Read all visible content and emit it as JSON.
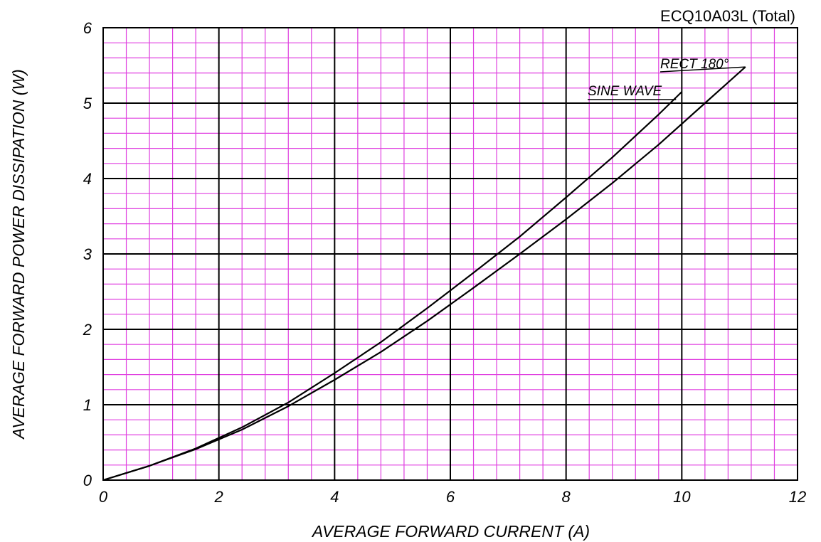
{
  "chart_data": {
    "type": "line",
    "title": "ECQ10A03L (Total)",
    "xlabel": "AVERAGE FORWARD CURRENT (A)",
    "ylabel": "AVERAGE FORWARD POWER DISSIPATION (W)",
    "xlim": [
      0,
      12
    ],
    "ylim": [
      0,
      6
    ],
    "x_ticks": [
      "0",
      "2",
      "4",
      "6",
      "8",
      "10",
      "12"
    ],
    "y_ticks": [
      "0",
      "1",
      "2",
      "3",
      "4",
      "5",
      "6"
    ],
    "grid": true,
    "minor_grid_color": "#e040e0",
    "major_grid_color": "#000000",
    "series": [
      {
        "name": "SINE WAVE",
        "x": [
          0,
          0.8,
          1.6,
          2.4,
          3.2,
          4.0,
          4.8,
          5.6,
          6.4,
          7.2,
          8.0,
          8.8,
          9.6,
          10.0
        ],
        "y": [
          0,
          0.19,
          0.42,
          0.7,
          1.03,
          1.42,
          1.83,
          2.28,
          2.75,
          3.23,
          3.75,
          4.28,
          4.85,
          5.15
        ]
      },
      {
        "name": "RECT 180°",
        "x": [
          0,
          0.8,
          1.6,
          2.4,
          3.2,
          4.0,
          4.8,
          5.6,
          6.4,
          7.2,
          8.0,
          8.8,
          9.6,
          10.4,
          11.1
        ],
        "y": [
          0,
          0.19,
          0.41,
          0.67,
          0.98,
          1.33,
          1.7,
          2.11,
          2.55,
          3.0,
          3.46,
          3.94,
          4.45,
          5.0,
          5.48
        ]
      }
    ]
  }
}
